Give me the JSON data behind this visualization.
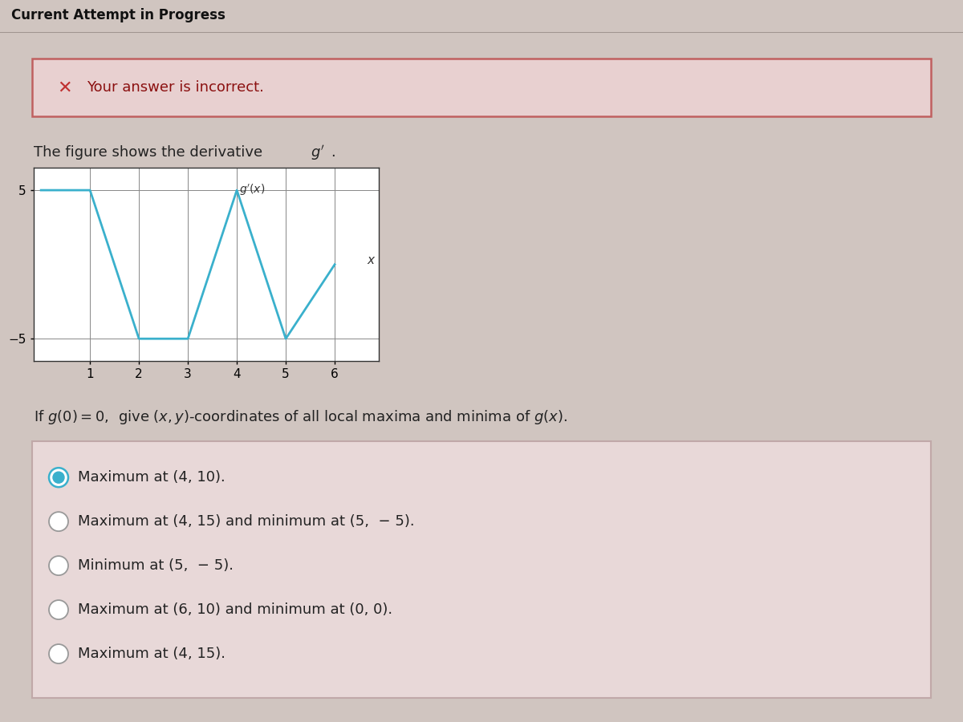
{
  "bg_top": "#c8bdb8",
  "bg_main": "#d0c5c0",
  "header_text": "Current Attempt in Progress",
  "header_bg": "#c0b5b0",
  "header_line": "#a09590",
  "error_bg": "#e8d0d0",
  "error_border": "#c06060",
  "error_x_color": "#c03030",
  "error_text": "Your answer is incorrect.",
  "error_text_color": "#8b1010",
  "q1_text": "The figure shows the derivative ",
  "graph_x": [
    0,
    1,
    2,
    3,
    4,
    4.5,
    5,
    6
  ],
  "graph_y": [
    5,
    5,
    -5,
    -5,
    5,
    0,
    -5,
    0
  ],
  "graph_color": "#3ab0cc",
  "graph_xticks": [
    1,
    2,
    3,
    4,
    5,
    6
  ],
  "graph_yticks": [
    -5,
    5
  ],
  "graph_xlim": [
    -0.15,
    6.9
  ],
  "graph_ylim": [
    -6.5,
    6.5
  ],
  "q2_text": "If g(0) = 0,  give (x, y)-coordinates of all local maxima and minima of g(x).",
  "answer_bg": "#e8d8d8",
  "answer_border": "#c0a8a8",
  "options": [
    {
      "text": "Maximum at (4, 10).",
      "selected": true
    },
    {
      "text": "Maximum at (4, 15) and minimum at (5,  − 5).",
      "selected": false
    },
    {
      "text": "Minimum at (5,  − 5).",
      "selected": false
    },
    {
      "text": "Maximum at (6, 10) and minimum at (0, 0).",
      "selected": false
    },
    {
      "text": "Maximum at (4, 15).",
      "selected": false
    }
  ],
  "radio_fill": "#3ab0cc",
  "radio_empty_edge": "#999999",
  "text_color": "#222222"
}
